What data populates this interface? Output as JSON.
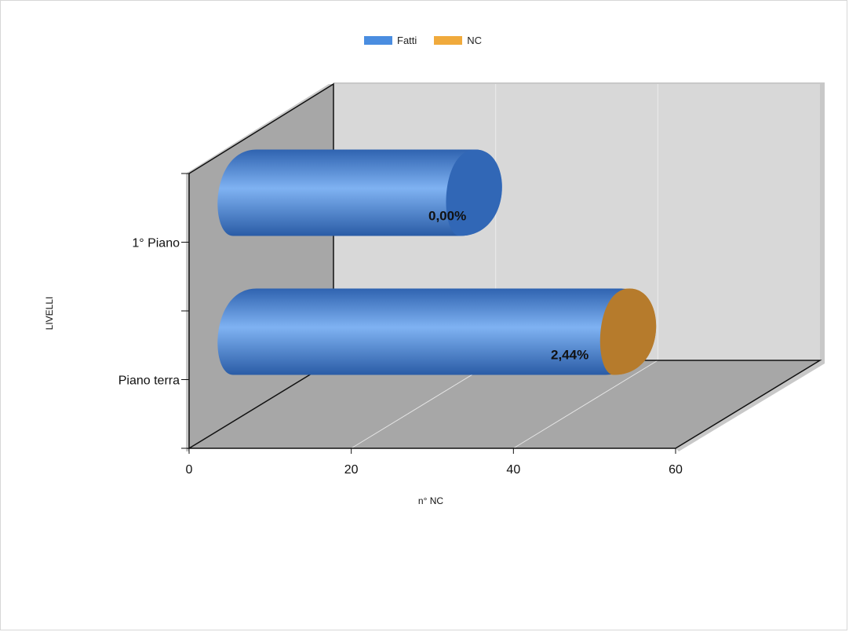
{
  "chart_data": {
    "type": "bar",
    "orientation": "horizontal",
    "stacked": true,
    "categories": [
      "Piano terra",
      "1° Piano"
    ],
    "series": [
      {
        "name": "Fatti",
        "color": "#4a8de0",
        "values": [
          45,
          27
        ]
      },
      {
        "name": "NC",
        "color": "#f0aa3c",
        "values": [
          1,
          0
        ]
      }
    ],
    "data_labels": [
      "2,44%",
      "0,00%"
    ],
    "xlabel": "n° NC",
    "ylabel": "LIVELLI",
    "xlim": [
      0,
      60
    ],
    "x_ticks": [
      "0",
      "20",
      "40",
      "60"
    ],
    "legend_position": "top-center",
    "grid": true,
    "three_d": true
  }
}
